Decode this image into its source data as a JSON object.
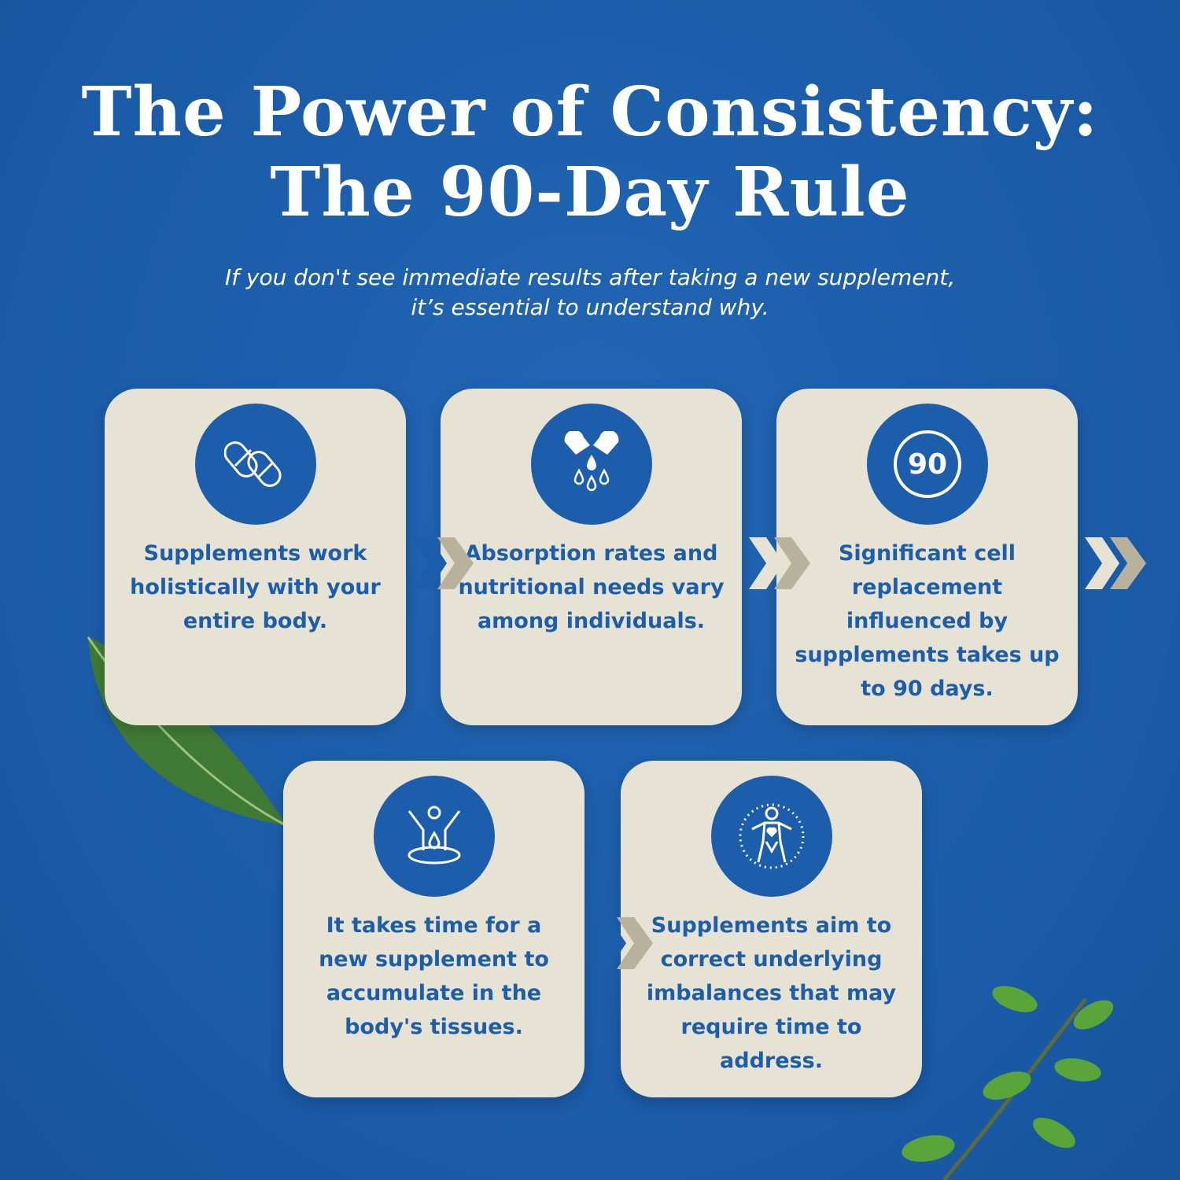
{
  "title_lines": [
    "The Power of Consistency:",
    "The 90-Day Rule"
  ],
  "subtitle_lines": [
    "If you don't see immediate results after taking a new supplement,",
    "it’s essential to understand why."
  ],
  "colors": {
    "background": "#1c5eab",
    "card": "#e6e2d4",
    "text": "#1c5eab",
    "chevron_dark": "#1c5eab",
    "chevron_light": "#b8b29c"
  },
  "steps": [
    {
      "icon": "capsules-icon",
      "text": "Supplements work holistically with your entire body."
    },
    {
      "icon": "capsule-drops-icon",
      "text": "Absorption rates and nutritional needs vary among individuals."
    },
    {
      "icon": "90-badge-icon",
      "icon_text": "90",
      "text": "Significant cell replacement influenced by supplements takes up to 90 days."
    },
    {
      "icon": "body-absorption-icon",
      "text": "It takes time for a new supplement to accumulate in the body's tissues."
    },
    {
      "icon": "body-heart-icon",
      "text": "Supplements aim to correct underlying imbalances that may require time to address."
    }
  ]
}
